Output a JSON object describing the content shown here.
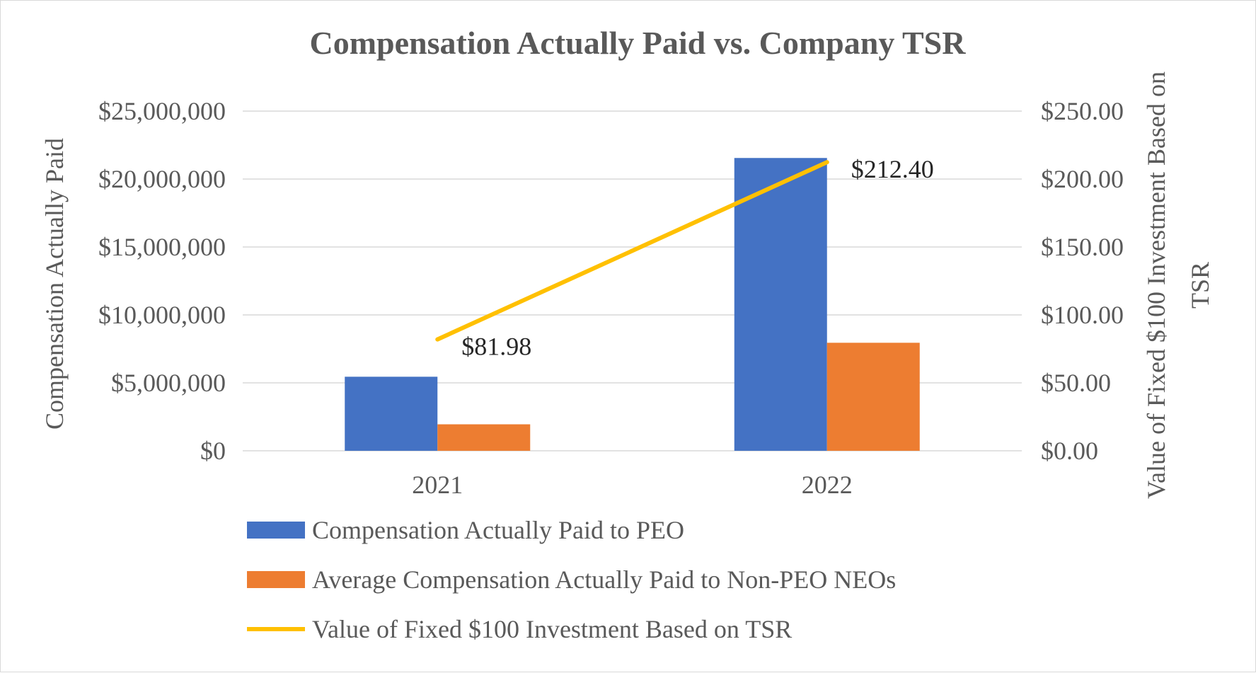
{
  "chart_data": {
    "type": "bar",
    "title": "Compensation Actually Paid vs. Company TSR",
    "categories": [
      "2021",
      "2022"
    ],
    "y_left": {
      "label": "Compensation Actually Paid",
      "min": 0,
      "max": 25000000,
      "step": 5000000,
      "tick_labels": [
        "$0",
        "$5,000,000",
        "$10,000,000",
        "$15,000,000",
        "$20,000,000",
        "$25,000,000"
      ]
    },
    "y_right": {
      "label_line1": "Value of Fixed $100 Investment Based on",
      "label_line2": "TSR",
      "min": 0,
      "max": 250,
      "step": 50,
      "tick_labels": [
        "$0.00",
        "$50.00",
        "$100.00",
        "$150.00",
        "$200.00",
        "$250.00"
      ]
    },
    "series": [
      {
        "name": "Compensation Actually Paid to PEO",
        "type": "bar",
        "axis": "left",
        "color": "#4472c4",
        "values": [
          5450000,
          21550000
        ]
      },
      {
        "name": "Average Compensation Actually Paid to Non-PEO NEOs",
        "type": "bar",
        "axis": "left",
        "color": "#ed7d31",
        "values": [
          1950000,
          7950000
        ]
      },
      {
        "name": "Value of Fixed $100 Investment Based on TSR",
        "type": "line",
        "axis": "right",
        "color": "#ffc000",
        "values": [
          81.98,
          212.4
        ],
        "data_labels": [
          "$81.98",
          "$212.40"
        ]
      }
    ],
    "grid": true,
    "legend_position": "bottom"
  }
}
